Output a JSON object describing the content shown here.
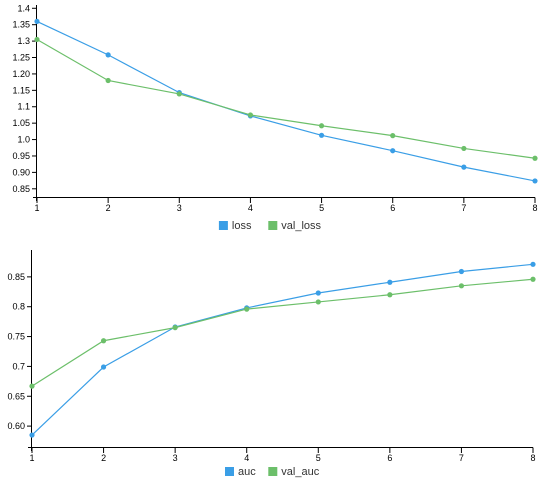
{
  "colors": {
    "series1": "#3a9ee6",
    "series2": "#6cbf6a",
    "axis": "#000000"
  },
  "chart_data": [
    {
      "type": "line",
      "x": [
        1,
        2,
        3,
        4,
        5,
        6,
        7,
        8
      ],
      "x_tick_labels": [
        "1",
        "2",
        "3",
        "4",
        "5",
        "6",
        "7",
        "8"
      ],
      "ylim": [
        0.825,
        1.41
      ],
      "y_tick_values": [
        0.85,
        0.9,
        0.95,
        1.0,
        1.05,
        1.1,
        1.15,
        1.2,
        1.25,
        1.3,
        1.35,
        1.4
      ],
      "y_tick_labels": [
        "0.85",
        "0.90",
        "0.95",
        "1.0",
        "1.05",
        "1.1",
        "1.15",
        "1.20",
        "1.25",
        "1.3",
        "1.35",
        "1.4"
      ],
      "series": [
        {
          "name": "loss",
          "color": "#3a9ee6",
          "values": [
            1.36,
            1.258,
            1.143,
            1.072,
            1.013,
            0.966,
            0.916,
            0.874
          ]
        },
        {
          "name": "val_loss",
          "color": "#6cbf6a",
          "values": [
            1.305,
            1.18,
            1.139,
            1.075,
            1.042,
            1.012,
            0.973,
            0.943
          ]
        }
      ],
      "legend_position": "bottom-center"
    },
    {
      "type": "line",
      "x": [
        1,
        2,
        3,
        4,
        5,
        6,
        7,
        8
      ],
      "x_tick_labels": [
        "1",
        "2",
        "3",
        "4",
        "5",
        "6",
        "7",
        "8"
      ],
      "ylim": [
        0.565,
        0.895
      ],
      "y_tick_values": [
        0.6,
        0.65,
        0.7,
        0.75,
        0.8,
        0.85
      ],
      "y_tick_labels": [
        "0.60",
        "0.65",
        "0.7",
        "0.75",
        "0.8",
        "0.85"
      ],
      "series": [
        {
          "name": "auc",
          "color": "#3a9ee6",
          "values": [
            0.585,
            0.699,
            0.766,
            0.798,
            0.823,
            0.841,
            0.859,
            0.871
          ]
        },
        {
          "name": "val_auc",
          "color": "#6cbf6a",
          "values": [
            0.667,
            0.743,
            0.765,
            0.796,
            0.808,
            0.82,
            0.835,
            0.846
          ]
        }
      ],
      "legend_position": "bottom-center"
    }
  ]
}
